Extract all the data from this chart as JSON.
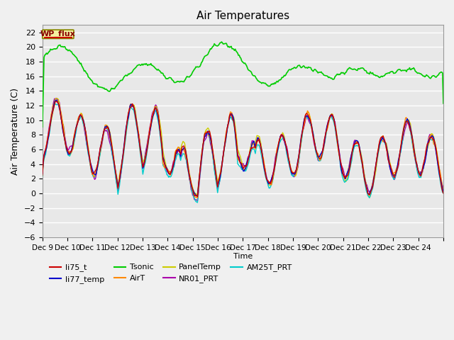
{
  "title": "Air Temperatures",
  "ylabel": "Air Temperature (C)",
  "xlabel": "Time",
  "ylim": [
    -6,
    23
  ],
  "yticks": [
    -6,
    -4,
    -2,
    0,
    2,
    4,
    6,
    8,
    10,
    12,
    14,
    16,
    18,
    20,
    22
  ],
  "bg_color": "#e8e8e8",
  "series_colors": {
    "li75_t": "#cc0000",
    "li77_temp": "#0000cc",
    "Tsonic": "#00cc00",
    "AirT": "#ff8800",
    "PanelTemp": "#cccc00",
    "NR01_PRT": "#aa00aa",
    "AM25T_PRT": "#00cccc"
  },
  "n_points": 500,
  "x_start": 8,
  "x_end": 24,
  "xtick_positions": [
    8,
    9,
    10,
    11,
    12,
    13,
    14,
    15,
    16,
    17,
    18,
    19,
    20,
    21,
    22,
    23,
    24
  ],
  "xtick_labels": [
    "Dec 9",
    "Dec 10",
    "Dec 11",
    "Dec 12",
    "Dec 13",
    "Dec 14",
    "Dec 15",
    "Dec 16",
    "Dec 17",
    "Dec 18",
    "Dec 19",
    "Dec 20",
    "Dec 21",
    "Dec 22",
    "Dec 23",
    "Dec 24",
    ""
  ]
}
